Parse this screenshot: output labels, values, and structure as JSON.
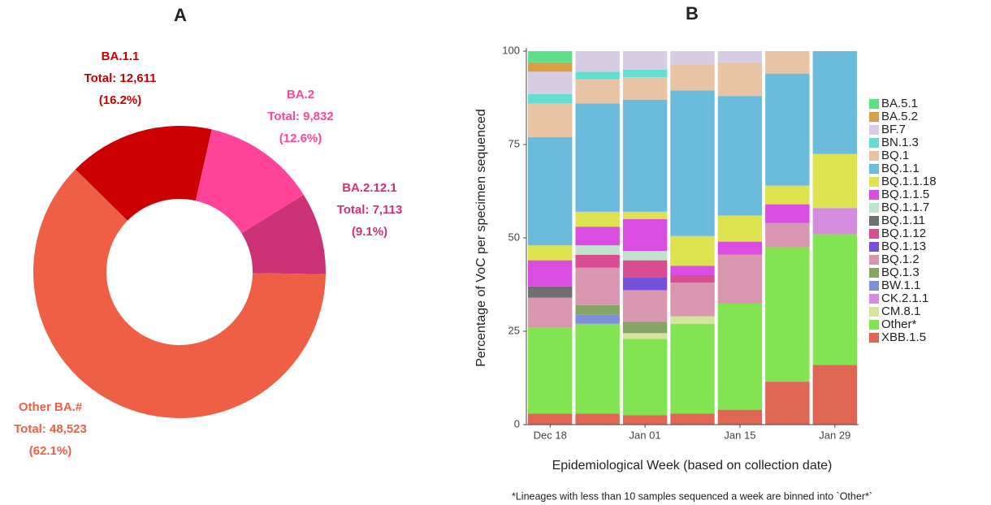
{
  "chart_data": [
    {
      "type": "donut",
      "title": "A",
      "labels": [
        "BA.1.1",
        "BA.2",
        "BA.2.12.1",
        "Other BA.#"
      ],
      "values": [
        12611,
        9832,
        7113,
        48523
      ],
      "value_labels": [
        "Total: 12,611",
        "Total: 9,832",
        "Total: 7,113",
        "Total: 48,523"
      ],
      "share_labels": [
        "(16.2%)",
        "(12.6%)",
        "(9.1%)",
        "(62.1%)"
      ],
      "colors": [
        "#cc0000",
        "#ff4499",
        "#cc3377",
        "#ee5f45"
      ]
    },
    {
      "type": "stacked_bar",
      "title": "B",
      "x_label": "Epidemiological Week (based on collection date)",
      "y_label": "Percentage of VoC per specimen sequenced",
      "footnote": "*Lineages with less than 10 samples sequenced a week are binned into `Other*`",
      "categories": [
        "Dec 18",
        null,
        "Jan 01",
        null,
        "Jan 15",
        null,
        "Jan 29"
      ],
      "ylim": [
        0,
        100
      ],
      "yticks": [
        0,
        25,
        50,
        75,
        100
      ],
      "series": [
        {
          "name": "BA.5.1",
          "color": "#5ee08a",
          "values": [
            3,
            0,
            0,
            0,
            0,
            0,
            0
          ]
        },
        {
          "name": "BA.5.2",
          "color": "#d9a04a",
          "values": [
            2.5,
            0,
            0,
            0,
            0,
            0,
            0
          ]
        },
        {
          "name": "BF.7",
          "color": "#d6cce3",
          "values": [
            6,
            5.5,
            5,
            3.5,
            3,
            0,
            0
          ]
        },
        {
          "name": "BN.1.3",
          "color": "#66ddd2",
          "values": [
            2.5,
            2,
            2,
            0,
            0,
            0,
            0
          ]
        },
        {
          "name": "BQ.1",
          "color": "#e8c4a4",
          "values": [
            9,
            6.5,
            6,
            7,
            9,
            6,
            0
          ]
        },
        {
          "name": "BQ.1.1",
          "color": "#6bbcdc",
          "values": [
            29,
            29,
            30,
            39,
            32,
            30,
            27.5
          ]
        },
        {
          "name": "BQ.1.1.18",
          "color": "#dde24e",
          "values": [
            4,
            4,
            2,
            8,
            7,
            5,
            14.5
          ]
        },
        {
          "name": "BQ.1.1.5",
          "color": "#d94ee0",
          "values": [
            7,
            5,
            8.5,
            2.5,
            3.5,
            5,
            0
          ]
        },
        {
          "name": "BQ.1.1.7",
          "color": "#c0e3cc",
          "values": [
            0,
            2.5,
            2.5,
            0,
            0,
            0,
            0
          ]
        },
        {
          "name": "BQ.1.11",
          "color": "#707070",
          "values": [
            3,
            0,
            0,
            0,
            0,
            0,
            0
          ]
        },
        {
          "name": "BQ.1.12",
          "color": "#d94e90",
          "values": [
            0,
            3.5,
            4.5,
            2,
            0,
            0,
            0
          ]
        },
        {
          "name": "BQ.1.13",
          "color": "#7650d8",
          "values": [
            0,
            0,
            3.5,
            0,
            0,
            0,
            0
          ]
        },
        {
          "name": "BQ.1.2",
          "color": "#d897ae",
          "values": [
            8,
            10,
            8.5,
            9,
            13,
            6.5,
            0
          ]
        },
        {
          "name": "BQ.1.3",
          "color": "#86a464",
          "values": [
            0,
            2.5,
            3,
            0,
            0,
            0,
            0
          ]
        },
        {
          "name": "BW.1.1",
          "color": "#7f8fd8",
          "values": [
            0,
            2.5,
            0,
            0,
            0,
            0,
            0
          ]
        },
        {
          "name": "CK.2.1.1",
          "color": "#d58cde",
          "values": [
            0,
            0,
            0,
            0,
            0,
            0,
            7
          ]
        },
        {
          "name": "CM.8.1",
          "color": "#d4e49a",
          "values": [
            0,
            0,
            1.5,
            2,
            0,
            0,
            0
          ]
        },
        {
          "name": "Other*",
          "color": "#82e450",
          "values": [
            23,
            24,
            20.5,
            24,
            28.5,
            36,
            35
          ]
        },
        {
          "name": "XBB.1.5",
          "color": "#e06654",
          "values": [
            3,
            3,
            2.5,
            3,
            4,
            11.5,
            16
          ]
        }
      ]
    }
  ]
}
